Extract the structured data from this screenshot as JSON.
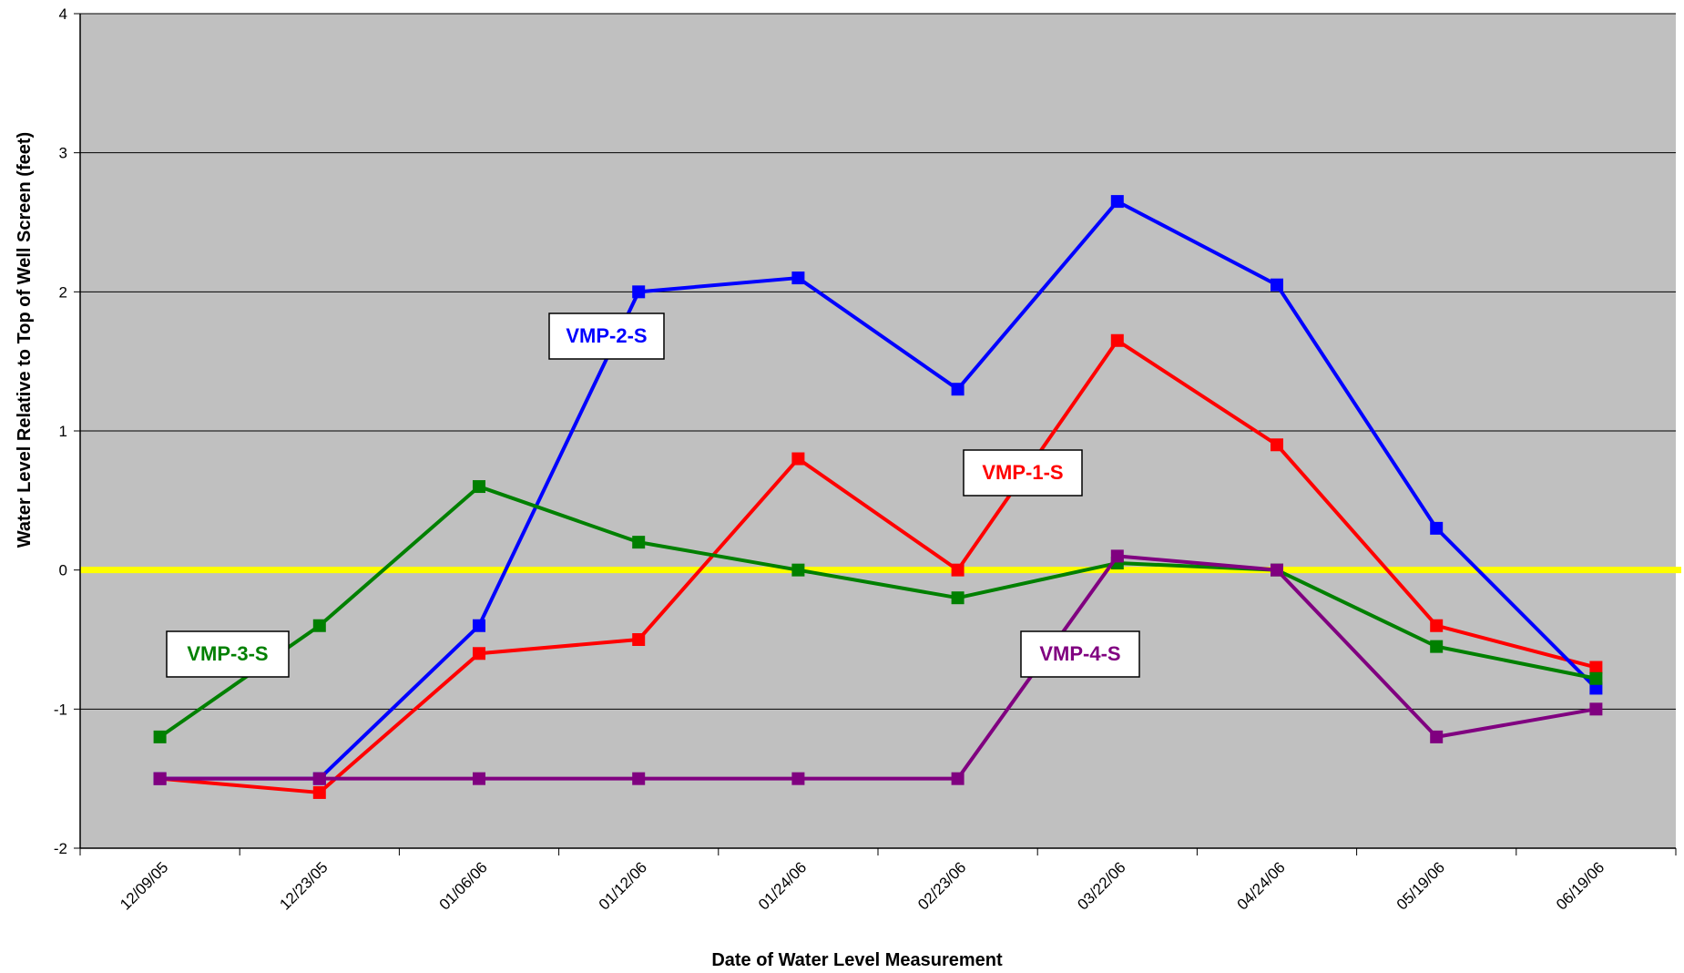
{
  "chart_data": {
    "type": "line",
    "title": "",
    "xlabel": "Date of Water Level Measurement",
    "ylabel": "Water Level Relative to Top of Well Screen (feet)",
    "ylim": [
      -2,
      4
    ],
    "yticks": [
      "-2",
      "-1",
      "0",
      "1",
      "2",
      "3",
      "4"
    ],
    "categories": [
      "12/09/05",
      "12/23/05",
      "01/06/06",
      "01/12/06",
      "01/24/06",
      "02/23/06",
      "03/22/06",
      "04/24/06",
      "05/19/06",
      "06/19/06"
    ],
    "grid": true,
    "plot_background": "#c0c0c0",
    "reference_line": {
      "y": 0,
      "color": "#ffff00"
    },
    "series": [
      {
        "name": "VMP-1-S",
        "color": "#ff0000",
        "values": [
          -1.5,
          -1.6,
          -0.6,
          -0.5,
          0.8,
          0.0,
          1.65,
          0.9,
          -0.4,
          -0.7
        ]
      },
      {
        "name": "VMP-2-S",
        "color": "#0000ff",
        "values": [
          -1.5,
          -1.5,
          -0.4,
          2.0,
          2.1,
          1.3,
          2.65,
          2.05,
          0.3,
          -0.85
        ]
      },
      {
        "name": "VMP-3-S",
        "color": "#008000",
        "values": [
          -1.2,
          -0.4,
          0.6,
          0.2,
          0.0,
          -0.2,
          0.05,
          0.0,
          -0.55,
          -0.78
        ]
      },
      {
        "name": "VMP-4-S",
        "color": "#800080",
        "values": [
          -1.5,
          -1.5,
          -1.5,
          -1.5,
          -1.5,
          -1.5,
          0.1,
          0.0,
          -1.2,
          -1.0
        ]
      }
    ]
  }
}
